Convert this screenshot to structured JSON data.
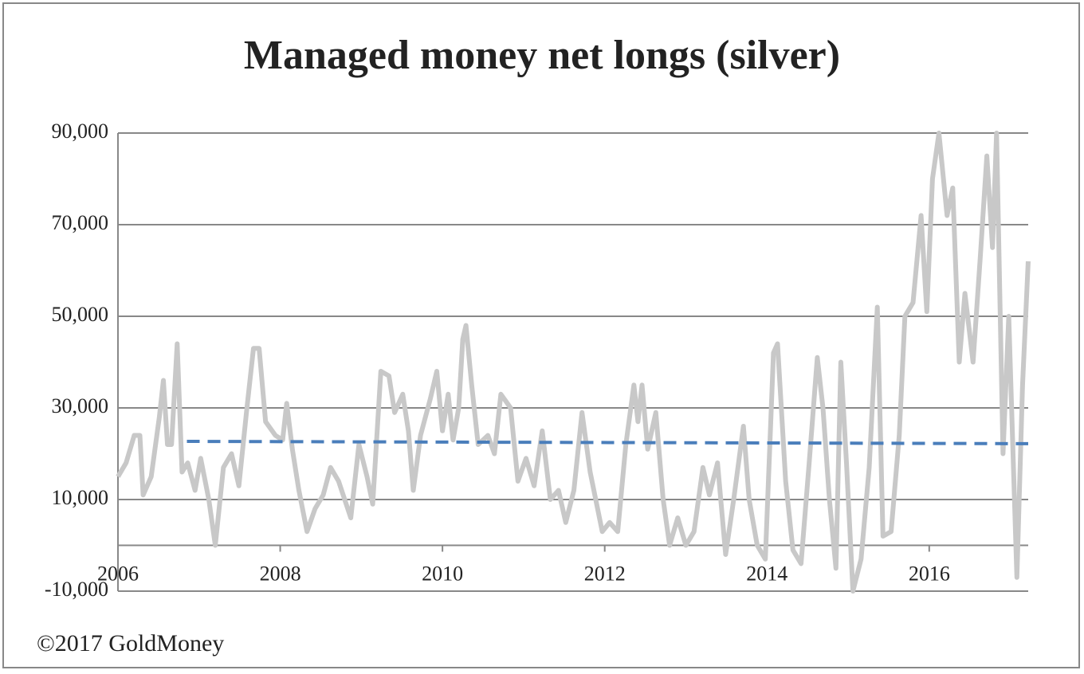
{
  "chart_data": {
    "type": "line",
    "title": "Managed money net longs (silver)",
    "source": "©2017 GoldMoney",
    "xlim": [
      2006,
      2017.22
    ],
    "xticks": [
      2006,
      2008,
      2010,
      2012,
      2014,
      2016
    ],
    "ylim": [
      -10000,
      90000
    ],
    "yticks": [
      {
        "value": -10000,
        "label": "-10,000"
      },
      {
        "value": 10000,
        "label": "10,000"
      },
      {
        "value": 30000,
        "label": "30,000"
      },
      {
        "value": 50000,
        "label": "50,000"
      },
      {
        "value": 70000,
        "label": "70,000"
      },
      {
        "value": 90000,
        "label": "90,000"
      }
    ],
    "grid": true,
    "series": [
      {
        "color": "#c8c8c8",
        "dash": false,
        "x": [
          2006.0,
          2006.1,
          2006.2,
          2006.27,
          2006.31,
          2006.41,
          2006.51,
          2006.56,
          2006.61,
          2006.66,
          2006.73,
          2006.79,
          2006.86,
          2006.95,
          2007.02,
          2007.12,
          2007.2,
          2007.3,
          2007.4,
          2007.49,
          2007.59,
          2007.67,
          2007.74,
          2007.82,
          2007.94,
          2008.03,
          2008.08,
          2008.15,
          2008.23,
          2008.33,
          2008.43,
          2008.53,
          2008.62,
          2008.72,
          2008.87,
          2008.97,
          2009.07,
          2009.14,
          2009.24,
          2009.34,
          2009.41,
          2009.51,
          2009.58,
          2009.64,
          2009.73,
          2009.85,
          2009.93,
          2010.0,
          2010.07,
          2010.13,
          2010.2,
          2010.25,
          2010.29,
          2010.36,
          2010.44,
          2010.56,
          2010.64,
          2010.72,
          2010.84,
          2010.93,
          2011.03,
          2011.13,
          2011.23,
          2011.33,
          2011.43,
          2011.52,
          2011.62,
          2011.72,
          2011.82,
          2011.97,
          2012.06,
          2012.16,
          2012.26,
          2012.36,
          2012.41,
          2012.46,
          2012.53,
          2012.63,
          2012.72,
          2012.8,
          2012.9,
          2013.0,
          2013.1,
          2013.21,
          2013.29,
          2013.39,
          2013.49,
          2013.59,
          2013.71,
          2013.78,
          2013.88,
          2013.98,
          2014.08,
          2014.13,
          2014.23,
          2014.32,
          2014.42,
          2014.52,
          2014.62,
          2014.69,
          2014.77,
          2014.85,
          2014.91,
          2014.98,
          2015.06,
          2015.16,
          2015.26,
          2015.36,
          2015.43,
          2015.53,
          2015.63,
          2015.7,
          2015.8,
          2015.9,
          2015.97,
          2016.04,
          2016.12,
          2016.22,
          2016.29,
          2016.37,
          2016.44,
          2016.54,
          2016.63,
          2016.71,
          2016.78,
          2016.83,
          2016.91,
          2016.98,
          2017.08,
          2017.15,
          2017.22
        ],
        "values": [
          15000,
          18000,
          24000,
          24000,
          11000,
          15000,
          28000,
          36000,
          22000,
          22000,
          44000,
          16000,
          18000,
          12000,
          19000,
          10000,
          0,
          17000,
          20000,
          13000,
          30000,
          43000,
          43000,
          27000,
          24000,
          23000,
          31000,
          21000,
          12000,
          3000,
          8000,
          11000,
          17000,
          14000,
          6000,
          22000,
          15000,
          9000,
          38000,
          37000,
          29000,
          33000,
          25000,
          12000,
          24000,
          32000,
          38000,
          25000,
          33000,
          23000,
          30000,
          45000,
          48000,
          35000,
          22000,
          24000,
          20000,
          33000,
          30000,
          14000,
          19000,
          13000,
          25000,
          10000,
          12000,
          5000,
          12000,
          29000,
          16000,
          3000,
          5000,
          3000,
          22000,
          35000,
          27000,
          35000,
          21000,
          29000,
          10000,
          0,
          6000,
          0,
          3000,
          17000,
          11000,
          18000,
          -2000,
          10000,
          26000,
          10000,
          0,
          -3000,
          42000,
          44000,
          14000,
          -1000,
          -4000,
          18000,
          41000,
          30000,
          10000,
          -5000,
          40000,
          18000,
          -10000,
          -3000,
          17000,
          52000,
          2000,
          3000,
          24000,
          50000,
          53000,
          72000,
          51000,
          80000,
          90000,
          72000,
          78000,
          40000,
          55000,
          40000,
          63000,
          85000,
          65000,
          90000,
          20000,
          50000,
          -7000,
          35000,
          62000
        ]
      },
      {
        "color": "#4a7ebb",
        "dash": true,
        "x": [
          2006.85,
          2017.22
        ],
        "values": [
          22700,
          22200
        ]
      }
    ]
  }
}
